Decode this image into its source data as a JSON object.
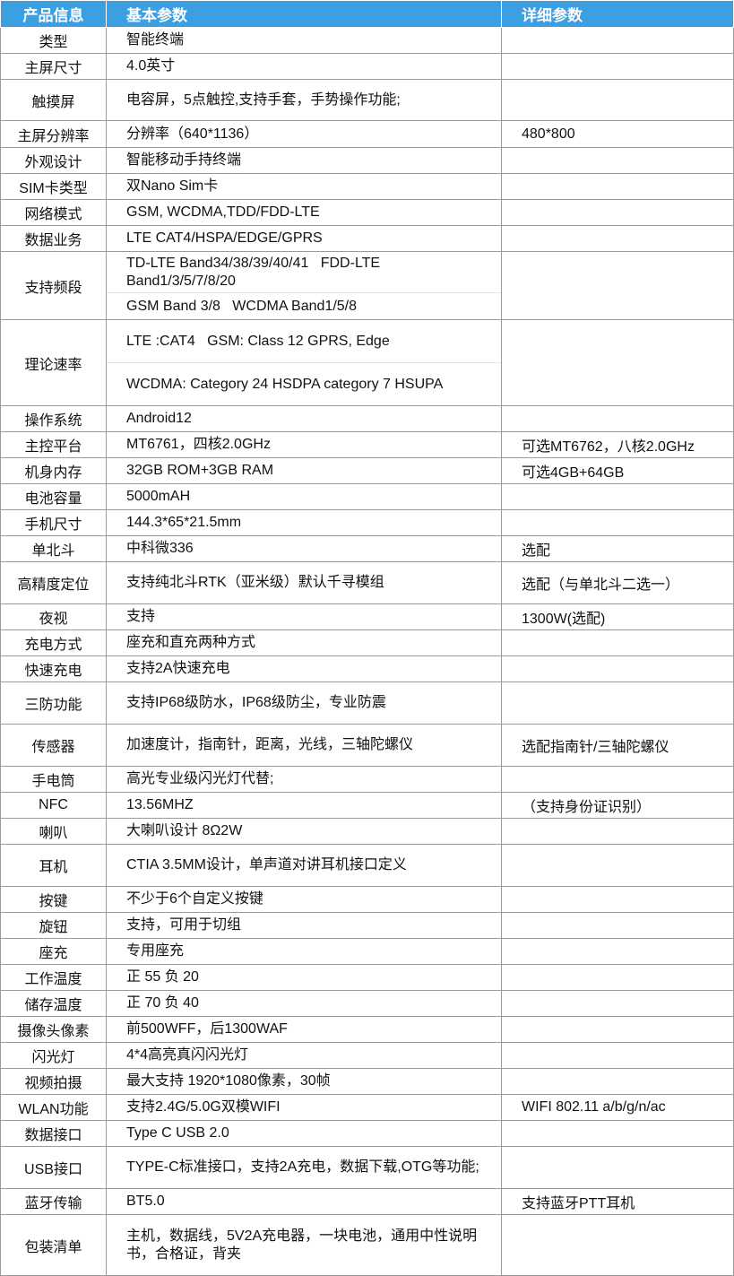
{
  "table": {
    "header": [
      "产品信息",
      "基本参数",
      "详细参数"
    ],
    "rows": [
      {
        "label": "类型",
        "basic": "智能终端"
      },
      {
        "label": "主屏尺寸",
        "basic": "4.0英寸"
      },
      {
        "label": "触摸屏",
        "basic": "电容屏，5点触控,支持手套，手势操作功能;"
      },
      {
        "label": "主屏分辨率",
        "basic": "分辨率（640*1136）",
        "detail": "480*800"
      },
      {
        "label": "外观设计",
        "basic": "智能移动手持终端"
      },
      {
        "label": "SIM卡类型",
        "basic": "双Nano Sim卡"
      },
      {
        "label": "网络模式",
        "basic": "GSM, WCDMA,TDD/FDD-LTE"
      },
      {
        "label": "数据业务",
        "basic": "LTE CAT4/HSPA/EDGE/GPRS"
      },
      {
        "label": "支持频段",
        "basic": [
          "TD-LTE Band34/38/39/40/41   FDD-LTE Band1/3/5/7/8/20",
          "GSM Band 3/8   WCDMA Band1/5/8"
        ]
      },
      {
        "label": "理论速率",
        "basic": [
          "LTE :CAT4   GSM: Class 12 GPRS, Edge",
          "WCDMA: Category 24 HSDPA category 7 HSUPA"
        ]
      },
      {
        "label": "操作系统",
        "basic": "Android12"
      },
      {
        "label": "主控平台",
        "basic": "MT6761，四核2.0GHz",
        "detail": "可选MT6762，八核2.0GHz"
      },
      {
        "label": "机身内存",
        "basic": "32GB ROM+3GB RAM",
        "detail": "可选4GB+64GB"
      },
      {
        "label": "电池容量",
        "basic": "5000mAH"
      },
      {
        "label": "手机尺寸",
        "basic": "144.3*65*21.5mm"
      },
      {
        "label": "单北斗",
        "basic": "中科微336",
        "detail": "选配"
      },
      {
        "label": "高精度定位",
        "basic": "支持纯北斗RTK（亚米级）默认千寻模组",
        "detail": "选配（与单北斗二选一）"
      },
      {
        "label": "夜视",
        "basic": "支持",
        "detail": "1300W(选配)"
      },
      {
        "label": "充电方式",
        "basic": "座充和直充两种方式"
      },
      {
        "label": "快速充电",
        "basic": "支持2A快速充电"
      },
      {
        "label": "三防功能",
        "basic": "支持IP68级防水，IP68级防尘，专业防震"
      },
      {
        "label": "传感器",
        "basic": "加速度计，指南针，距离，光线，三轴陀螺仪",
        "detail": "选配指南针/三轴陀螺仪"
      },
      {
        "label": "手电筒",
        "basic": "高光专业级闪光灯代替;"
      },
      {
        "label": "NFC",
        "basic": "13.56MHZ",
        "detail": "（支持身份证识别）"
      },
      {
        "label": "喇叭",
        "basic": "大喇叭设计 8Ω2W"
      },
      {
        "label": "耳机",
        "basic": "CTIA 3.5MM设计，单声道对讲耳机接口定义"
      },
      {
        "label": "按键",
        "basic": "不少于6个自定义按键"
      },
      {
        "label": "旋钮",
        "basic": "支持，可用于切组"
      },
      {
        "label": "座充",
        "basic": "专用座充"
      },
      {
        "label": "工作温度",
        "basic": "正 55 负 20"
      },
      {
        "label": "储存温度",
        "basic": "正 70 负 40"
      },
      {
        "label": "摄像头像素",
        "basic": "前500WFF，后1300WAF"
      },
      {
        "label": "闪光灯",
        "basic": "4*4高亮真闪闪光灯"
      },
      {
        "label": "视频拍摄",
        "basic": "最大支持 1920*1080像素，30帧"
      },
      {
        "label": "WLAN功能",
        "basic": "支持2.4G/5.0G双模WIFI",
        "detail": "WIFI 802.11 a/b/g/n/ac"
      },
      {
        "label": "数据接口",
        "basic": "Type C USB 2.0"
      },
      {
        "label": "USB接口",
        "basic": "TYPE-C标准接口，支持2A充电，数据下载,OTG等功能;"
      },
      {
        "label": "蓝牙传输",
        "basic": "BT5.0",
        "detail": "支持蓝牙PTT耳机"
      },
      {
        "label": "包装清单",
        "basic": "主机，数据线，5V2A充电器，一块电池，通用中性说明书，合格证，背夹"
      }
    ]
  }
}
